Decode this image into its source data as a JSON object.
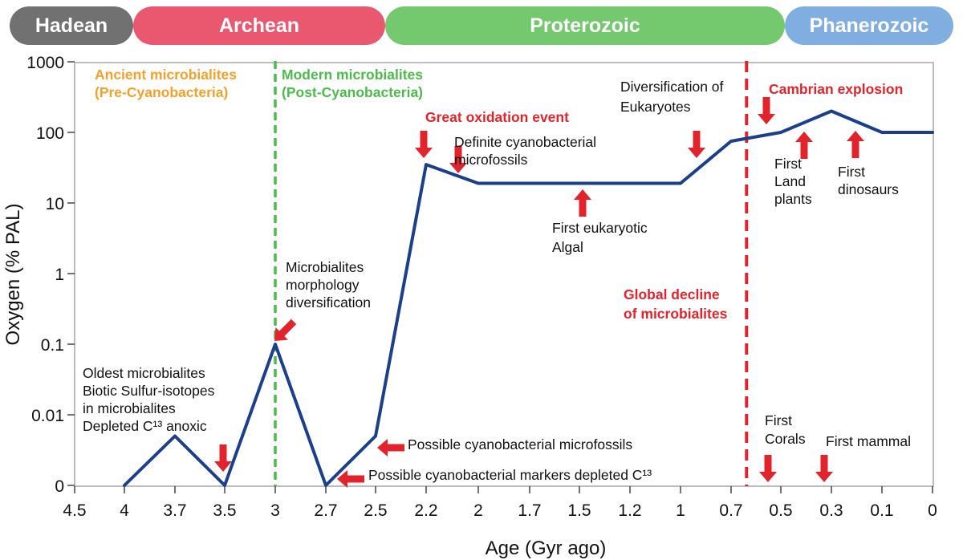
{
  "colors": {
    "hadean": "#717171",
    "archean": "#ea5870",
    "proterozoic": "#74c86e",
    "phanerozoic": "#80aee0",
    "curve": "#1b3f8b",
    "arrow": "#e3232c",
    "red_text": "#e3232c",
    "orange_text": "#f2a12a",
    "green_text": "#4cbb4c"
  },
  "eons": [
    {
      "label": "Hadean",
      "color": "#717171"
    },
    {
      "label": "Archean",
      "color": "#ea5870"
    },
    {
      "label": "Proterozoic",
      "color": "#74c86e"
    },
    {
      "label": "Phanerozoic",
      "color": "#80aee0"
    }
  ],
  "chart_data": {
    "type": "line",
    "xlabel": "Age (Gyr ago)",
    "ylabel": "Oxygen (% PAL)",
    "y_scale": "log",
    "grid": false,
    "x_ticks": [
      "4.5",
      "4",
      "3.7",
      "3.5",
      "3",
      "2.7",
      "2.5",
      "2.2",
      "2",
      "1.7",
      "1.5",
      "1.2",
      "1",
      "0.7",
      "0.5",
      "0.3",
      "0.1",
      "0"
    ],
    "y_ticks": [
      "1000",
      "100",
      "10",
      "1",
      "0.1",
      "0.01",
      "0"
    ],
    "series": [
      {
        "x": [
          "4",
          "3.7",
          "3.5",
          "3",
          "2.7",
          "2.5",
          "2.2",
          "2",
          "1",
          "0.7",
          "0.5",
          "0.3",
          "0.1",
          "0"
        ],
        "y": [
          0.001,
          0.005,
          0.001,
          0.1,
          0.001,
          0.005,
          35,
          19,
          19,
          75,
          100,
          200,
          100,
          100
        ]
      }
    ],
    "vertical_lines": [
      {
        "x": "3",
        "color": "#4cbb4c",
        "style": "dashed"
      },
      {
        "x": "0.541",
        "color": "#e3232c",
        "style": "dashed"
      }
    ],
    "annotations": [
      {
        "lines": [
          "Ancient microbialites",
          "(Pre-Cyanobacteria)"
        ],
        "style": "orange"
      },
      {
        "lines": [
          "Modern microbialites",
          "(Post-Cyanobacteria)"
        ],
        "style": "green"
      },
      {
        "lines": [
          "Great oxidation event"
        ],
        "style": "red"
      },
      {
        "lines": [
          "Definite cyanobacterial",
          "microfossils"
        ],
        "style": "black"
      },
      {
        "lines": [
          "Diversification of",
          "Eukaryotes"
        ],
        "style": "black"
      },
      {
        "lines": [
          "Cambrian explosion"
        ],
        "style": "red"
      },
      {
        "lines": [
          "First eukaryotic",
          "Algal"
        ],
        "style": "black"
      },
      {
        "lines": [
          "First",
          "Land",
          "plants"
        ],
        "style": "black"
      },
      {
        "lines": [
          "First",
          "dinosaurs"
        ],
        "style": "black"
      },
      {
        "lines": [
          "Microbialites",
          "morphology",
          "diversification"
        ],
        "style": "black"
      },
      {
        "lines": [
          "Global decline",
          "of microbialites"
        ],
        "style": "red"
      },
      {
        "lines": [
          "Oldest microbialites",
          "Biotic Sulfur-isotopes",
          "in microbialites",
          "Depleted C¹³ anoxic"
        ],
        "style": "black"
      },
      {
        "lines": [
          "Possible cyanobacterial microfossils"
        ],
        "style": "black"
      },
      {
        "lines": [
          "Possible cyanobacterial markers depleted C¹³"
        ],
        "style": "black"
      },
      {
        "lines": [
          "First",
          "Corals"
        ],
        "style": "black"
      },
      {
        "lines": [
          "First mammal"
        ],
        "style": "black"
      }
    ]
  }
}
